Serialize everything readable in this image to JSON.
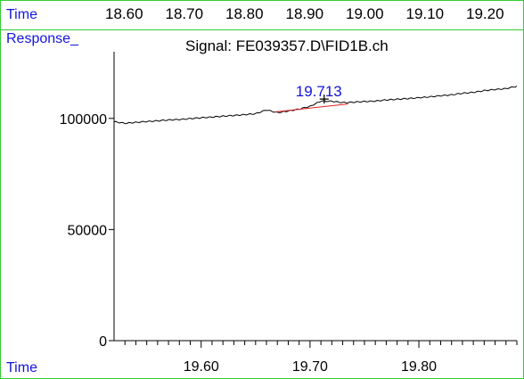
{
  "header": {
    "time_label": "Time",
    "top_ticks": [
      "18.60",
      "18.70",
      "18.80",
      "18.90",
      "19.00",
      "19.10",
      "19.20"
    ]
  },
  "panel": {
    "response_label": "Response_",
    "title": "Signal: FE039357.D\\FID1B.ch",
    "time_label": "Time"
  },
  "colors": {
    "border": "#33cc33",
    "label_blue": "#1414dc",
    "trace": "#000000",
    "baseline": "#dd2222",
    "peak_label": "#1414dc"
  },
  "chart_data": {
    "type": "line",
    "title": "Signal: FE039357.D\\FID1B.ch",
    "xlabel": "Time",
    "ylabel": "Response_",
    "xlim": [
      19.52,
      19.89
    ],
    "ylim": [
      0,
      130000
    ],
    "xticks": [
      19.6,
      19.7,
      19.8
    ],
    "yticks": [
      0,
      50000,
      100000
    ],
    "x": [
      19.52,
      19.53,
      19.54,
      19.55,
      19.56,
      19.57,
      19.58,
      19.59,
      19.6,
      19.61,
      19.62,
      19.63,
      19.64,
      19.65,
      19.66,
      19.67,
      19.68,
      19.69,
      19.7,
      19.71,
      19.72,
      19.73,
      19.74,
      19.75,
      19.76,
      19.77,
      19.78,
      19.79,
      19.8,
      19.81,
      19.82,
      19.83,
      19.84,
      19.85,
      19.86,
      19.87,
      19.88,
      19.89
    ],
    "series": [
      {
        "values": [
          98500,
          97800,
          98200,
          98600,
          98900,
          99300,
          99500,
          99900,
          100300,
          100600,
          101000,
          101300,
          101700,
          102100,
          103800,
          102600,
          103300,
          104200,
          105400,
          107800,
          107700,
          107100,
          107300,
          107600,
          107800,
          108300,
          108600,
          108900,
          109300,
          109700,
          110200,
          110600,
          111300,
          111700,
          112500,
          113000,
          113400,
          114500
        ]
      }
    ],
    "peak_label": {
      "text": "19.713",
      "x": 19.713,
      "y": 108700
    },
    "baseline_segment": {
      "x": [
        19.668,
        19.735
      ],
      "y": [
        102900,
        106500
      ]
    }
  }
}
